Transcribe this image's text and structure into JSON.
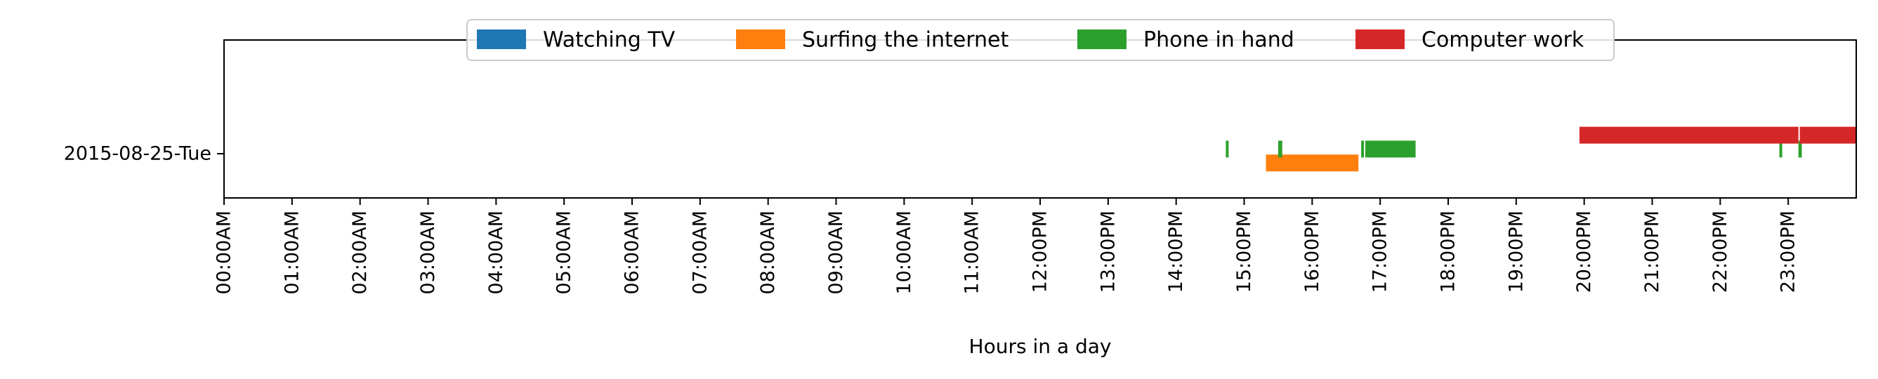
{
  "chart_data": {
    "type": "timeline",
    "xlabel": "Hours in a day",
    "ylabel": "",
    "xlim": [
      0,
      24
    ],
    "x_ticks": [
      "00:00AM",
      "01:00AM",
      "02:00AM",
      "03:00AM",
      "04:00AM",
      "05:00AM",
      "06:00AM",
      "07:00AM",
      "08:00AM",
      "09:00AM",
      "10:00AM",
      "11:00AM",
      "12:00PM",
      "13:00PM",
      "14:00PM",
      "15:00PM",
      "16:00PM",
      "17:00PM",
      "18:00PM",
      "19:00PM",
      "20:00PM",
      "21:00PM",
      "22:00PM",
      "23:00PM"
    ],
    "rows": [
      "2015-08-25-Tue"
    ],
    "legend_placement": "top-center",
    "grid": false,
    "series": [
      {
        "name": "Watching TV",
        "color": "#1f77b4",
        "offset": 0.6,
        "intervals": []
      },
      {
        "name": "Surfing the internet",
        "color": "#ff7f0e",
        "offset": -0.6,
        "intervals": [
          [
            15.32,
            16.68
          ]
        ]
      },
      {
        "name": "Phone in hand",
        "color": "#2ca02c",
        "offset": 0.3,
        "intervals": [
          [
            14.73,
            14.77
          ],
          [
            15.5,
            15.56
          ],
          [
            16.72,
            16.76
          ],
          [
            16.78,
            17.52
          ],
          [
            22.87,
            22.9
          ],
          [
            23.15,
            23.2
          ]
        ]
      },
      {
        "name": "Computer work",
        "color": "#d62728",
        "offset": 1.2,
        "intervals": [
          [
            19.93,
            23.15
          ],
          [
            23.17,
            24.0
          ]
        ]
      }
    ]
  }
}
